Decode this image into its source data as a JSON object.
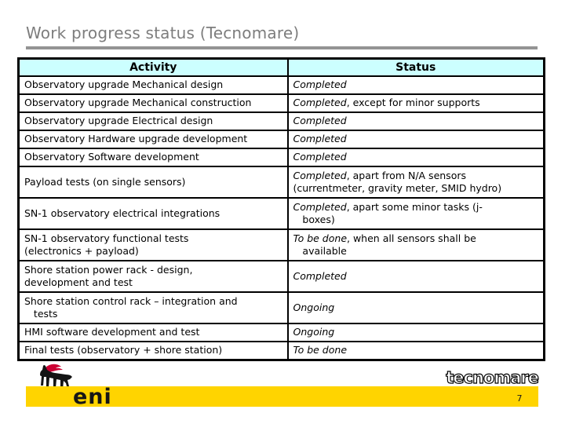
{
  "title": "Work progress status (Tecnomare)",
  "table": {
    "headers": [
      "Activity",
      "Status"
    ],
    "rows": [
      {
        "activity": "Observatory upgrade Mechanical design",
        "status_em": "Completed",
        "status_rest": "",
        "tall": false
      },
      {
        "activity": "Observatory upgrade Mechanical construction",
        "status_em": "Completed",
        "status_rest": ", except for minor supports",
        "tall": false
      },
      {
        "activity": "Observatory upgrade Electrical design",
        "status_em": "Completed",
        "status_rest": "",
        "tall": false
      },
      {
        "activity": "Observatory Hardware upgrade development",
        "status_em": "Completed",
        "status_rest": "",
        "tall": false
      },
      {
        "activity": "Observatory Software development",
        "status_em": "Completed",
        "status_rest": "",
        "tall": false
      },
      {
        "activity": "Payload tests (on single sensors)",
        "status_em": "Completed",
        "status_rest": ", apart from N/A sensors\n(currentmeter, gravity meter, SMID hydro)",
        "tall": true
      },
      {
        "activity": "SN-1 observatory electrical integrations",
        "status_em": "Completed",
        "status_rest": ", apart some minor tasks (j-\n   boxes)",
        "tall": true
      },
      {
        "activity": "SN-1 observatory functional tests\n(electronics + payload)",
        "status_em": "To be done",
        "status_rest": ", when all sensors shall be\n   available",
        "tall": true
      },
      {
        "activity": "Shore station power rack - design,\ndevelopment and test",
        "status_em": "Completed",
        "status_rest": "",
        "tall": true
      },
      {
        "activity": "Shore station control rack – integration and\n   tests",
        "status_em": "Ongoing",
        "status_rest": "",
        "tall": true
      },
      {
        "activity": "HMI software development and test",
        "status_em": "Ongoing",
        "status_rest": "",
        "tall": false
      },
      {
        "activity": "Final tests (observatory + shore station)",
        "status_em": "To be done",
        "status_rest": "",
        "tall": false
      }
    ]
  },
  "footer": {
    "eni_label": "eni",
    "tecnomare_label": "tecnomare",
    "page_number": "7"
  },
  "colors": {
    "header_bg": "#ccffff",
    "bar_yellow": "#ffd400",
    "title_gray": "#7d7d7d",
    "flame_red": "#cc0033",
    "border_black": "#000000"
  }
}
